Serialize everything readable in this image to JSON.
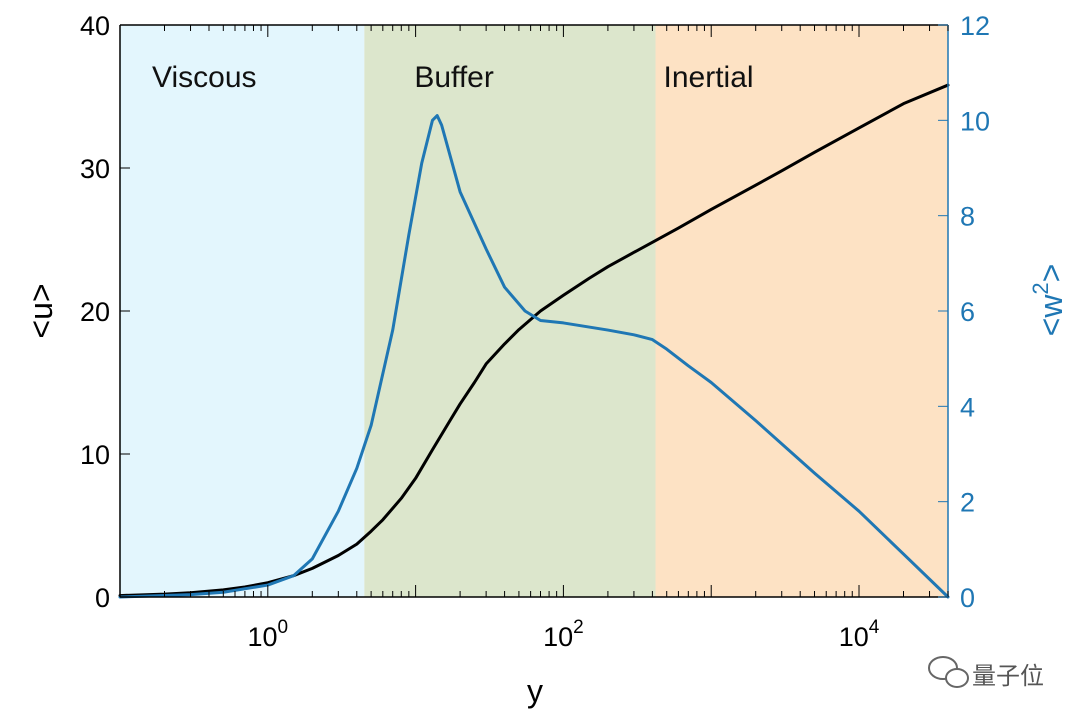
{
  "chart_data": {
    "type": "line",
    "xlabel": "y",
    "ylabel_left": "<u>",
    "ylabel_right": "<w",
    "ylabel_right_superscript": "2",
    "ylabel_right_suffix": ">",
    "xscale": "log",
    "xlim": [
      0.1,
      40000
    ],
    "ylim_left": [
      0,
      40
    ],
    "ylim_right": [
      0,
      12
    ],
    "x_tick_labels": [
      {
        "value": 1,
        "base": "10",
        "exp": "0"
      },
      {
        "value": 100,
        "base": "10",
        "exp": "2"
      },
      {
        "value": 10000,
        "base": "10",
        "exp": "4"
      }
    ],
    "y_left_ticks": [
      0,
      10,
      20,
      30,
      40
    ],
    "y_right_ticks": [
      0,
      2,
      4,
      6,
      8,
      10,
      12
    ],
    "regions": [
      {
        "label": "Viscous",
        "x_start": 0.1,
        "x_end": 4.5,
        "color": "#e3f6fd"
      },
      {
        "label": "Buffer",
        "x_start": 4.5,
        "x_end": 420,
        "color": "#dce6cc"
      },
      {
        "label": "Inertial",
        "x_start": 420,
        "x_end": 40000,
        "color": "#fde2c4"
      }
    ],
    "series": [
      {
        "axis": "left",
        "color": "#000000",
        "points": [
          [
            0.1,
            0.1
          ],
          [
            0.2,
            0.2
          ],
          [
            0.3,
            0.3
          ],
          [
            0.5,
            0.5
          ],
          [
            0.7,
            0.7
          ],
          [
            1,
            1.0
          ],
          [
            1.5,
            1.5
          ],
          [
            2,
            2.0
          ],
          [
            3,
            2.9
          ],
          [
            4,
            3.7
          ],
          [
            5,
            4.6
          ],
          [
            6,
            5.4
          ],
          [
            8,
            6.9
          ],
          [
            10,
            8.3
          ],
          [
            13,
            10.3
          ],
          [
            17,
            12.3
          ],
          [
            20,
            13.5
          ],
          [
            25,
            15.0
          ],
          [
            30,
            16.3
          ],
          [
            40,
            17.7
          ],
          [
            50,
            18.7
          ],
          [
            70,
            20.0
          ],
          [
            100,
            21.1
          ],
          [
            150,
            22.3
          ],
          [
            200,
            23.1
          ],
          [
            300,
            24.1
          ],
          [
            400,
            24.8
          ],
          [
            600,
            25.8
          ],
          [
            1000,
            27.1
          ],
          [
            2000,
            28.8
          ],
          [
            3000,
            29.8
          ],
          [
            5000,
            31.1
          ],
          [
            10000,
            32.8
          ],
          [
            20000,
            34.5
          ],
          [
            40000,
            35.8
          ]
        ]
      },
      {
        "axis": "right",
        "color": "#1f77b4",
        "points": [
          [
            0.1,
            0.0
          ],
          [
            0.3,
            0.05
          ],
          [
            0.5,
            0.1
          ],
          [
            1,
            0.25
          ],
          [
            1.5,
            0.45
          ],
          [
            2,
            0.8
          ],
          [
            3,
            1.8
          ],
          [
            4,
            2.7
          ],
          [
            5,
            3.6
          ],
          [
            7,
            5.6
          ],
          [
            9,
            7.6
          ],
          [
            11,
            9.1
          ],
          [
            13,
            10.0
          ],
          [
            14,
            10.1
          ],
          [
            15,
            9.9
          ],
          [
            20,
            8.5
          ],
          [
            30,
            7.3
          ],
          [
            40,
            6.5
          ],
          [
            55,
            6.0
          ],
          [
            70,
            5.8
          ],
          [
            100,
            5.75
          ],
          [
            200,
            5.6
          ],
          [
            300,
            5.5
          ],
          [
            400,
            5.4
          ],
          [
            500,
            5.2
          ],
          [
            700,
            4.85
          ],
          [
            1000,
            4.5
          ],
          [
            2000,
            3.7
          ],
          [
            5000,
            2.6
          ],
          [
            10000,
            1.8
          ],
          [
            20000,
            0.9
          ],
          [
            40000,
            0.0
          ]
        ]
      }
    ]
  },
  "watermark": {
    "icon": "wechat-icon",
    "text": "量子位"
  }
}
